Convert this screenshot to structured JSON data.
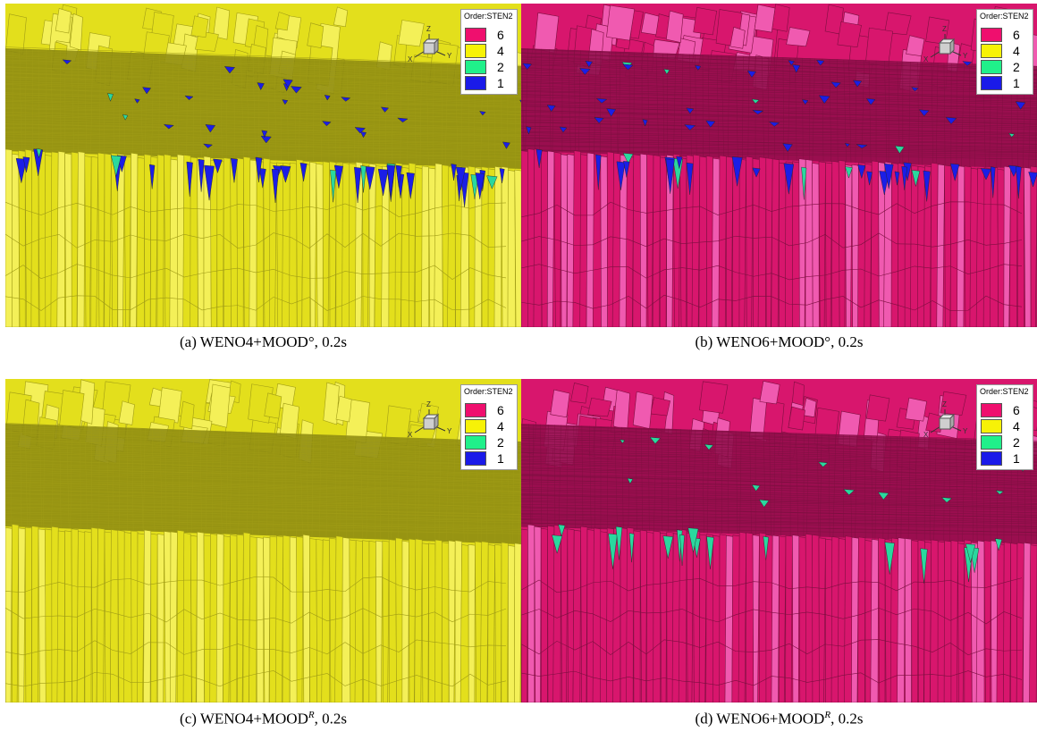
{
  "panels": [
    {
      "caption_main": "(a) WENO4+MOOD°, 0.2s",
      "caption_sup": "",
      "caption_tail": "",
      "colors": {
        "base": "#e3df1c",
        "mesh": "#a09c16",
        "light": "#f4f058",
        "dark": "#8a8710",
        "accent": "#1b1ee6",
        "accent2": "#2ad89e"
      }
    },
    {
      "caption_main": "(b) WENO6+MOOD°, 0.2s",
      "caption_sup": "",
      "caption_tail": "",
      "colors": {
        "base": "#d8166d",
        "mesh": "#7d0f40",
        "light": "#f05ab0",
        "dark": "#8f0d4a",
        "accent": "#1b1ee6",
        "accent2": "#2ad89e"
      }
    },
    {
      "caption_main": "(c) WENO4+MOOD",
      "caption_sup": "R",
      "caption_tail": ", 0.2s",
      "colors": {
        "base": "#e3df1c",
        "mesh": "#a09c16",
        "light": "#f4f058",
        "dark": "#8a8710",
        "accent": "#e3df1c",
        "accent2": "#e3df1c"
      }
    },
    {
      "caption_main": "(d) WENO6+MOOD",
      "caption_sup": "R",
      "caption_tail": ", 0.2s",
      "colors": {
        "base": "#d8166d",
        "mesh": "#7d0f40",
        "light": "#f05ab0",
        "dark": "#8f0d4a",
        "accent": "#2ad89e",
        "accent2": "#2ad89e"
      }
    }
  ],
  "legend": {
    "title": "Order:STEN2",
    "levels": [
      {
        "label": "6",
        "color": "#ef0f6e"
      },
      {
        "label": "4",
        "color": "#f7f207"
      },
      {
        "label": "2",
        "color": "#20f08a"
      },
      {
        "label": "1",
        "color": "#1a1ae8"
      }
    ]
  },
  "axis_labels": {
    "z": "Z",
    "x": "X",
    "y": "Y"
  }
}
